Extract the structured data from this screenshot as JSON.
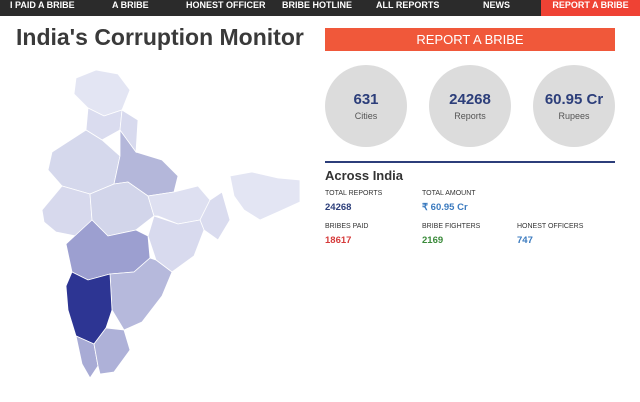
{
  "nav": {
    "items": [
      {
        "label": "I PAID A BRIBE"
      },
      {
        "label": "A BRIBE"
      },
      {
        "label": "HONEST OFFICER"
      },
      {
        "label": "BRIBE HOTLINE"
      },
      {
        "label": "ALL REPORTS"
      },
      {
        "label": "NEWS"
      }
    ],
    "report_label": "REPORT A BRIBE"
  },
  "page": {
    "title": "India's Corruption Monitor"
  },
  "cta": {
    "label": "REPORT A BRIBE"
  },
  "stats": [
    {
      "value": "631",
      "label": "Cities"
    },
    {
      "value": "24268",
      "label": "Reports"
    },
    {
      "value": "60.95 Cr",
      "label": "Rupees"
    }
  ],
  "across": {
    "title": "Across India",
    "metrics": {
      "total_reports": {
        "label": "TOTAL REPORTS",
        "value": "24268"
      },
      "total_amount": {
        "label": "TOTAL AMOUNT",
        "value": "₹ 60.95 Cr"
      },
      "bribes_paid": {
        "label": "BRIBES PAID",
        "value": "18617"
      },
      "bribe_fighters": {
        "label": "BRIBE FIGHTERS",
        "value": "2169"
      },
      "honest_officers": {
        "label": "HONEST OFFICERS",
        "value": "747"
      }
    }
  },
  "colors": {
    "accent": "#ef4234",
    "cta": "#f0583a",
    "navy": "#2c3e7a",
    "paid": "#d63b3b",
    "fighters": "#3a8a3a",
    "honest": "#3a7abf",
    "map_highlight": "#2d3593"
  }
}
